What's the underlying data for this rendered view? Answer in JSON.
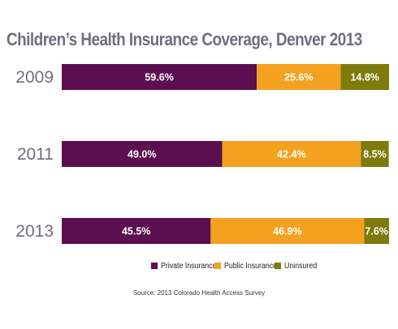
{
  "chart_data": {
    "type": "bar",
    "orientation": "horizontal",
    "stacked": true,
    "title": "Children’s Health Insurance Coverage, Denver 2013",
    "categories": [
      "2009",
      "2011",
      "2013"
    ],
    "series": [
      {
        "name": "Private Insurance",
        "values": [
          59.6,
          49.0,
          45.5
        ],
        "color": "#5c0f4f"
      },
      {
        "name": "Public Insurance",
        "values": [
          25.6,
          42.4,
          46.9
        ],
        "color": "#f4a11f"
      },
      {
        "name": "Uninsured",
        "values": [
          14.8,
          8.5,
          7.6
        ],
        "color": "#7e7a0b"
      }
    ],
    "data_labels": [
      [
        "59.6%",
        "25.6%",
        "14.8%"
      ],
      [
        "49.0%",
        "42.4%",
        "8.5%"
      ],
      [
        "45.5%",
        "46.9%",
        "7.6%"
      ]
    ],
    "xlim": [
      0,
      100
    ],
    "grid": false,
    "legend_position": "bottom",
    "source": "Source: 2013 Colorado Health Access Survey"
  }
}
